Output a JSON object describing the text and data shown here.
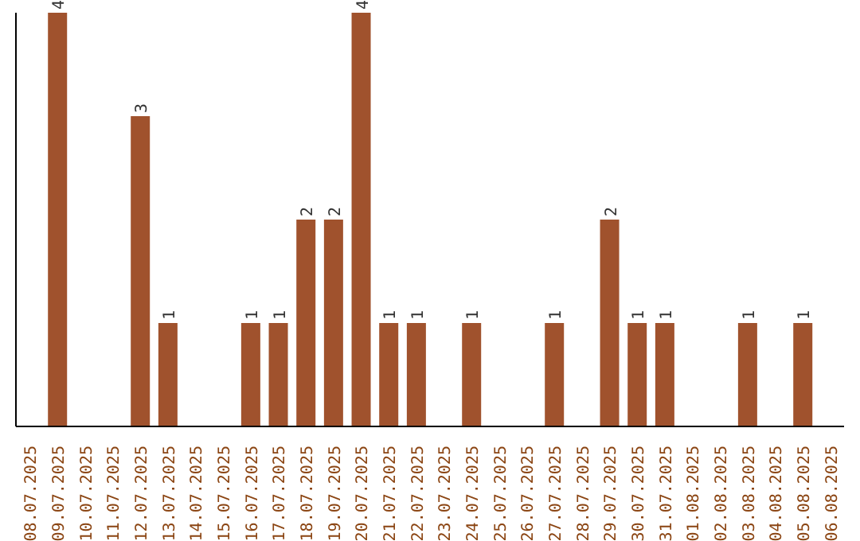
{
  "chart_data": {
    "type": "bar",
    "categories": [
      "08.07.2025",
      "09.07.2025",
      "10.07.2025",
      "11.07.2025",
      "12.07.2025",
      "13.07.2025",
      "14.07.2025",
      "15.07.2025",
      "16.07.2025",
      "17.07.2025",
      "18.07.2025",
      "19.07.2025",
      "20.07.2025",
      "21.07.2025",
      "22.07.2025",
      "23.07.2025",
      "24.07.2025",
      "25.07.2025",
      "26.07.2025",
      "27.07.2025",
      "28.07.2025",
      "29.07.2025",
      "30.07.2025",
      "31.07.2025",
      "01.08.2025",
      "02.08.2025",
      "03.08.2025",
      "04.08.2025",
      "05.08.2025",
      "06.08.2025"
    ],
    "values": [
      0,
      4,
      0,
      0,
      3,
      1,
      0,
      0,
      1,
      1,
      2,
      2,
      4,
      1,
      1,
      0,
      1,
      0,
      0,
      1,
      0,
      2,
      1,
      1,
      0,
      0,
      1,
      0,
      1,
      0
    ],
    "value_labels": [
      null,
      "4",
      null,
      null,
      "3",
      "1",
      null,
      null,
      "1",
      "1",
      "2",
      "2",
      "4",
      "1",
      "1",
      null,
      "1",
      null,
      null,
      "1",
      null,
      "2",
      "1",
      "1",
      null,
      null,
      "1",
      null,
      "1",
      null
    ],
    "color": "#a0522d"
  }
}
